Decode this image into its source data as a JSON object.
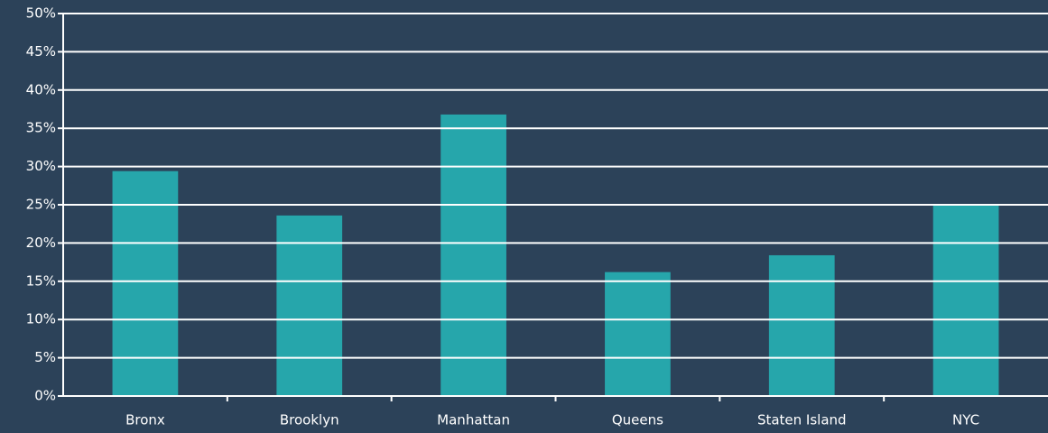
{
  "chart_data": {
    "type": "bar",
    "categories": [
      "Bronx",
      "Brooklyn",
      "Manhattan",
      "Queens",
      "Staten Island",
      "NYC"
    ],
    "values": [
      29.4,
      23.6,
      36.8,
      16.2,
      18.4,
      25.0
    ],
    "color": "#26a6ab",
    "ylim": [
      0,
      50
    ],
    "yticks": [
      {
        "value": 0,
        "label": "0%"
      },
      {
        "value": 5,
        "label": "5%"
      },
      {
        "value": 10,
        "label": "10%"
      },
      {
        "value": 15,
        "label": "15%"
      },
      {
        "value": 20,
        "label": "20%"
      },
      {
        "value": 25,
        "label": "25%"
      },
      {
        "value": 30,
        "label": "30%"
      },
      {
        "value": 35,
        "label": "35%"
      },
      {
        "value": 40,
        "label": "40%"
      },
      {
        "value": 45,
        "label": "45%"
      },
      {
        "value": 50,
        "label": "50%"
      }
    ],
    "grid": true
  }
}
